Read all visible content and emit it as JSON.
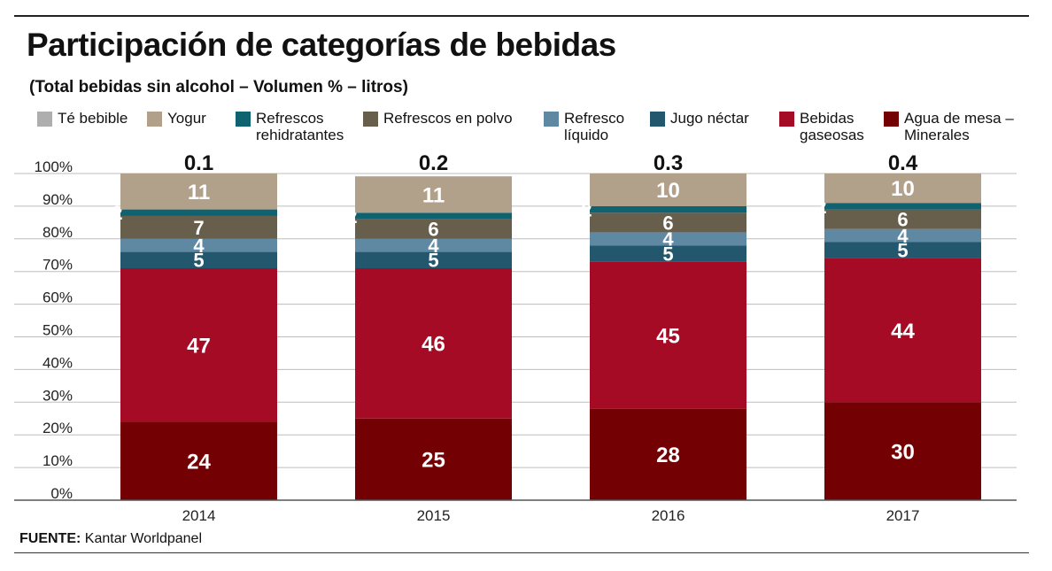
{
  "title": "Participación de categorías de bebidas",
  "subtitle": "(Total bebidas sin alcohol – Volumen % – litros)",
  "source_label": "FUENTE:",
  "source_text": "Kantar Worldpanel",
  "legend": [
    {
      "label": "Té bebible",
      "color": "#aeaeae"
    },
    {
      "label": "Yogur",
      "color": "#b1a08a"
    },
    {
      "label": "Refrescos\nrehidratantes",
      "color": "#0f6270"
    },
    {
      "label": "Refrescos en polvo",
      "color": "#675e4c"
    },
    {
      "label": "Refresco\nlíquido",
      "color": "#5f88a3"
    },
    {
      "label": "Jugo néctar",
      "color": "#22576e"
    },
    {
      "label": "Bebidas\ngaseosas",
      "color": "#a50b24"
    },
    {
      "label": "Agua de mesa –\nMinerales",
      "color": "#730002"
    }
  ],
  "chart_data": {
    "type": "bar",
    "stacked": true,
    "categories": [
      "2014",
      "2015",
      "2016",
      "2017"
    ],
    "y_tick_labels": [
      "0%",
      "10%",
      "20%",
      "30%",
      "40%",
      "50%",
      "60%",
      "70%",
      "80%",
      "90%",
      "100%"
    ],
    "ylim": [
      0,
      100
    ],
    "series": [
      {
        "name": "Agua de mesa – Minerales",
        "values": [
          24,
          25,
          28,
          30
        ],
        "color": "#730002",
        "show_label": true
      },
      {
        "name": "Bebidas gaseosas",
        "values": [
          47,
          46,
          45,
          44
        ],
        "color": "#a50b24",
        "show_label": true
      },
      {
        "name": "Jugo néctar",
        "values": [
          5,
          5,
          5,
          5
        ],
        "color": "#22576e",
        "show_label": true
      },
      {
        "name": "Refresco líquido",
        "values": [
          4,
          4,
          4,
          4
        ],
        "color": "#5f88a3",
        "show_label": true
      },
      {
        "name": "Refrescos en polvo",
        "values": [
          7,
          6,
          6,
          6
        ],
        "color": "#675e4c",
        "show_label": true
      },
      {
        "name": "Refrescos rehidratantes",
        "values": [
          2,
          2,
          2,
          2
        ],
        "color": "#0f6270",
        "show_label": true
      },
      {
        "name": "Yogur",
        "values": [
          11,
          11,
          10,
          10
        ],
        "color": "#b1a08a",
        "show_label": true
      },
      {
        "name": "Té bebible",
        "values": [
          0.1,
          0.2,
          0.3,
          0.4
        ],
        "color": "#aeaeae",
        "show_label": false
      }
    ],
    "top_labels": [
      "0.1",
      "0.2",
      "0.3",
      "0.4"
    ]
  }
}
